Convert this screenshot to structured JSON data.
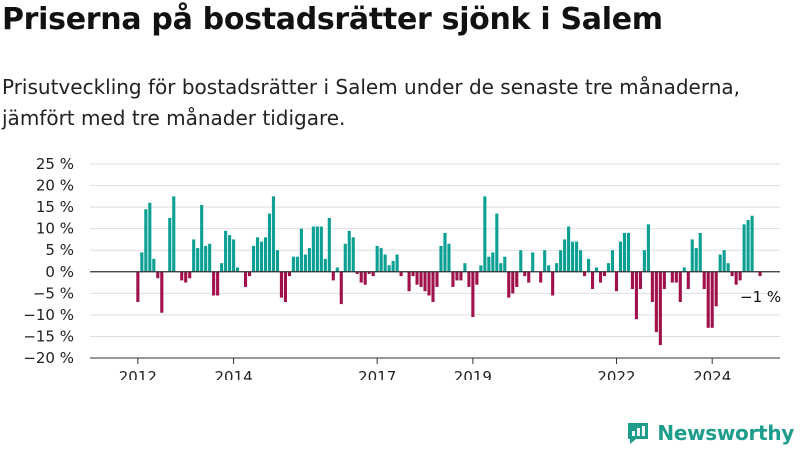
{
  "header": {
    "title": "Priserna på bostadsrätter sjönk i Salem",
    "subtitle": "Prisutveckling för bostadsrätter i Salem under de senaste tre månaderna, jämfört med tre månader tidigare."
  },
  "brand": {
    "name": "Newsworthy",
    "icon": "newsworthy-logo-icon"
  },
  "colors": {
    "positive": "#0c9f93",
    "negative": "#a0104a",
    "grid": "#dedede",
    "axis": "#333333"
  },
  "chart_data": {
    "type": "bar",
    "title": "",
    "xlabel": "",
    "ylabel": "",
    "x_start": "2011-01",
    "x_end": "2025-06",
    "ylim": [
      -20,
      25
    ],
    "yticks": [
      25,
      20,
      15,
      10,
      5,
      0,
      -5,
      -10,
      -15,
      -20
    ],
    "ytick_labels": [
      "25 %",
      "20 %",
      "15 %",
      "10 %",
      "5 %",
      "0 %",
      "−5 %",
      "−10 %",
      "−15 %",
      "−20 %"
    ],
    "xticks": [
      {
        "date": "2012-01",
        "label": "2012"
      },
      {
        "date": "2014-01",
        "label": "2014"
      },
      {
        "date": "2017-01",
        "label": "2017"
      },
      {
        "date": "2019-01",
        "label": "2019"
      },
      {
        "date": "2022-01",
        "label": "2022"
      },
      {
        "date": "2024-01",
        "label": "2024"
      }
    ],
    "grid": true,
    "legend": "none",
    "annotation": {
      "text": "−1 %",
      "date": "2025-01",
      "value": -1
    },
    "series": [
      {
        "values": [
          [
            "2012-01",
            -7
          ],
          [
            "2012-02",
            4.5
          ],
          [
            "2012-03",
            14.5
          ],
          [
            "2012-04",
            16
          ],
          [
            "2012-05",
            3
          ],
          [
            "2012-06",
            -1.5
          ],
          [
            "2012-07",
            -9.5
          ],
          [
            "2012-09",
            12.5
          ],
          [
            "2012-10",
            17.5
          ],
          [
            "2012-12",
            -2
          ],
          [
            "2013-01",
            -2.5
          ],
          [
            "2013-02",
            -1.5
          ],
          [
            "2013-03",
            7.5
          ],
          [
            "2013-04",
            5.5
          ],
          [
            "2013-05",
            15.5
          ],
          [
            "2013-06",
            6
          ],
          [
            "2013-07",
            6.5
          ],
          [
            "2013-08",
            -5.5
          ],
          [
            "2013-09",
            -5.5
          ],
          [
            "2013-10",
            2
          ],
          [
            "2013-11",
            9.5
          ],
          [
            "2013-12",
            8.5
          ],
          [
            "2014-01",
            7.5
          ],
          [
            "2014-02",
            1
          ],
          [
            "2014-04",
            -3.5
          ],
          [
            "2014-05",
            -1
          ],
          [
            "2014-06",
            6
          ],
          [
            "2014-07",
            8
          ],
          [
            "2014-08",
            7
          ],
          [
            "2014-09",
            8
          ],
          [
            "2014-10",
            13.5
          ],
          [
            "2014-11",
            17.5
          ],
          [
            "2014-12",
            5
          ],
          [
            "2015-01",
            -6
          ],
          [
            "2015-02",
            -7
          ],
          [
            "2015-03",
            -1
          ],
          [
            "2015-04",
            3.5
          ],
          [
            "2015-05",
            3.5
          ],
          [
            "2015-06",
            10
          ],
          [
            "2015-07",
            4
          ],
          [
            "2015-08",
            5.5
          ],
          [
            "2015-09",
            10.5
          ],
          [
            "2015-10",
            10.5
          ],
          [
            "2015-11",
            10.5
          ],
          [
            "2015-12",
            3
          ],
          [
            "2016-01",
            12.5
          ],
          [
            "2016-02",
            -2
          ],
          [
            "2016-03",
            1
          ],
          [
            "2016-04",
            -7.5
          ],
          [
            "2016-05",
            6.5
          ],
          [
            "2016-06",
            9.5
          ],
          [
            "2016-07",
            8
          ],
          [
            "2016-08",
            -0.5
          ],
          [
            "2016-09",
            -2.5
          ],
          [
            "2016-10",
            -3
          ],
          [
            "2016-11",
            -0.5
          ],
          [
            "2016-12",
            -1
          ],
          [
            "2017-01",
            6
          ],
          [
            "2017-02",
            5.5
          ],
          [
            "2017-03",
            4
          ],
          [
            "2017-04",
            1.5
          ],
          [
            "2017-05",
            2.5
          ],
          [
            "2017-06",
            4
          ],
          [
            "2017-07",
            -1
          ],
          [
            "2017-09",
            -4.5
          ],
          [
            "2017-10",
            -1
          ],
          [
            "2017-11",
            -3
          ],
          [
            "2017-12",
            -3.5
          ],
          [
            "2018-01",
            -4.5
          ],
          [
            "2018-02",
            -5.5
          ],
          [
            "2018-03",
            -7
          ],
          [
            "2018-04",
            -3.5
          ],
          [
            "2018-05",
            6
          ],
          [
            "2018-06",
            9
          ],
          [
            "2018-07",
            6.5
          ],
          [
            "2018-08",
            -3.5
          ],
          [
            "2018-09",
            -2
          ],
          [
            "2018-10",
            -2
          ],
          [
            "2018-11",
            2
          ],
          [
            "2018-12",
            -3.5
          ],
          [
            "2019-01",
            -10.5
          ],
          [
            "2019-02",
            -3
          ],
          [
            "2019-03",
            1.5
          ],
          [
            "2019-04",
            17.5
          ],
          [
            "2019-05",
            3.5
          ],
          [
            "2019-06",
            4.5
          ],
          [
            "2019-07",
            13.5
          ],
          [
            "2019-08",
            2
          ],
          [
            "2019-09",
            3.5
          ],
          [
            "2019-10",
            -6
          ],
          [
            "2019-11",
            -5
          ],
          [
            "2019-12",
            -3.5
          ],
          [
            "2020-01",
            5
          ],
          [
            "2020-02",
            -1
          ],
          [
            "2020-03",
            -2.5
          ],
          [
            "2020-04",
            4.5
          ],
          [
            "2020-06",
            -2.5
          ],
          [
            "2020-07",
            5
          ],
          [
            "2020-08",
            1.5
          ],
          [
            "2020-09",
            -5.5
          ],
          [
            "2020-10",
            2
          ],
          [
            "2020-11",
            5
          ],
          [
            "2020-12",
            7.5
          ],
          [
            "2021-01",
            10.5
          ],
          [
            "2021-02",
            7
          ],
          [
            "2021-03",
            7
          ],
          [
            "2021-04",
            5
          ],
          [
            "2021-05",
            -1
          ],
          [
            "2021-06",
            3
          ],
          [
            "2021-07",
            -4
          ],
          [
            "2021-08",
            1
          ],
          [
            "2021-09",
            -2.5
          ],
          [
            "2021-10",
            -1
          ],
          [
            "2021-11",
            2
          ],
          [
            "2021-12",
            5
          ],
          [
            "2022-01",
            -4.5
          ],
          [
            "2022-02",
            7
          ],
          [
            "2022-03",
            9
          ],
          [
            "2022-04",
            9
          ],
          [
            "2022-05",
            -4
          ],
          [
            "2022-06",
            -11
          ],
          [
            "2022-07",
            -4
          ],
          [
            "2022-08",
            5
          ],
          [
            "2022-09",
            11
          ],
          [
            "2022-10",
            -7
          ],
          [
            "2022-11",
            -14
          ],
          [
            "2022-12",
            -17
          ],
          [
            "2023-01",
            -4
          ],
          [
            "2023-03",
            -2.5
          ],
          [
            "2023-04",
            -2.5
          ],
          [
            "2023-05",
            -7
          ],
          [
            "2023-06",
            1
          ],
          [
            "2023-07",
            -4
          ],
          [
            "2023-08",
            7.5
          ],
          [
            "2023-09",
            5.5
          ],
          [
            "2023-10",
            9
          ],
          [
            "2023-11",
            -4
          ],
          [
            "2023-12",
            -13
          ],
          [
            "2024-01",
            -13
          ],
          [
            "2024-02",
            -8
          ],
          [
            "2024-03",
            4
          ],
          [
            "2024-04",
            5
          ],
          [
            "2024-05",
            2
          ],
          [
            "2024-06",
            -1
          ],
          [
            "2024-07",
            -3
          ],
          [
            "2024-08",
            -2
          ],
          [
            "2024-09",
            11
          ],
          [
            "2024-10",
            12
          ],
          [
            "2024-11",
            13
          ],
          [
            "2025-01",
            -1
          ]
        ]
      }
    ]
  }
}
